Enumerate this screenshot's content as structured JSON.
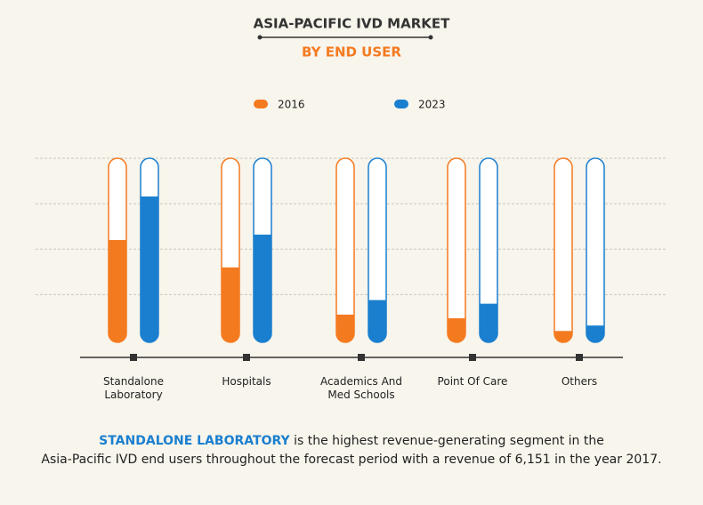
{
  "chart_data": {
    "type": "bar",
    "title": "ASIA-PACIFIC IVD MARKET",
    "subtitle": "BY END USER",
    "categories": [
      "Standalone\nLaboratory",
      "Hospitals",
      "Academics And\nMed Schools",
      "Point Of Care",
      "Others"
    ],
    "series": [
      {
        "name": "2016",
        "color": "#f47a20",
        "values": [
          55,
          40,
          14,
          12,
          5
        ]
      },
      {
        "name": "2023",
        "color": "#1a7fcf",
        "values": [
          79,
          58,
          22,
          20,
          8
        ]
      }
    ],
    "ylim": [
      0,
      100
    ],
    "yticks": [
      25,
      50,
      75,
      100
    ],
    "grid": true,
    "annotation": {
      "highlight": "STANDALONE LABORATORY",
      "text": "is the highest revenue-generating segment in the\nAsia-Pacific IVD end users throughout the forecast period with a revenue of 6,151 in the year 2017."
    }
  }
}
